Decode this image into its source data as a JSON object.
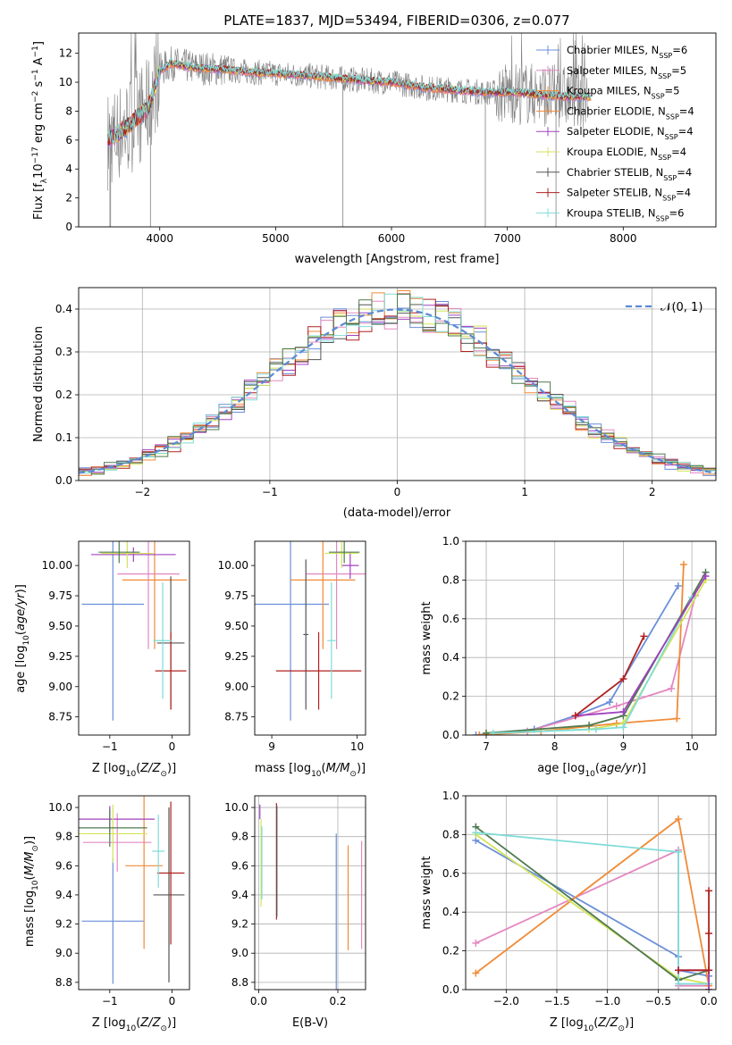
{
  "chart_data": [
    {
      "id": "spectrum",
      "type": "line",
      "title": "PLATE=1837, MJD=53494, FIBERID=0306, z=0.077",
      "xlabel": "wavelength [Angstrom, rest frame]",
      "ylabel": "Flux [f",
      "ylabel_full": "Flux [fλ10^-17 erg cm^-2 s^-1 A^-1]",
      "xlim": [
        3300,
        8800
      ],
      "ylim": [
        0,
        13.4
      ],
      "xticks": [
        "4000",
        "5000",
        "6000",
        "7000",
        "8000"
      ],
      "xtick_values": [
        4000,
        5000,
        6000,
        7000,
        8000
      ],
      "yticks": [
        "0",
        "2",
        "4",
        "6",
        "8",
        "10",
        "12"
      ],
      "ytick_values": [
        0,
        2,
        4,
        6,
        8,
        10,
        12
      ],
      "legend_position": "upper-right",
      "series": [
        {
          "name": "Chabrier MILES, N",
          "sub": "SSP",
          "suffix": "=6",
          "color": "#6a8fd8"
        },
        {
          "name": "Salpeter MILES, N",
          "sub": "SSP",
          "suffix": "=5",
          "color": "#e388c1"
        },
        {
          "name": "Kroupa MILES, N",
          "sub": "SSP",
          "suffix": "=5",
          "color": "#f08b38"
        },
        {
          "name": "Chabrier ELODIE, N",
          "sub": "SSP",
          "suffix": "=4",
          "color": "#f0883a"
        },
        {
          "name": "Salpeter ELODIE, N",
          "sub": "SSP",
          "suffix": "=4",
          "color": "#a040c0"
        },
        {
          "name": "Kroupa ELODIE, N",
          "sub": "SSP",
          "suffix": "=4",
          "color": "#d4e35a"
        },
        {
          "name": "Chabrier STELIB, N",
          "sub": "SSP",
          "suffix": "=4",
          "color": "#555555"
        },
        {
          "name": "Salpeter STELIB, N",
          "sub": "SSP",
          "suffix": "=4",
          "color": "#b02020"
        },
        {
          "name": "Kroupa STELIB, N",
          "sub": "SSP",
          "suffix": "=6",
          "color": "#7fdcd8"
        }
      ],
      "data_color": "#808080",
      "model_spectrum": {
        "x": [
          3550,
          3700,
          3900,
          4000,
          4100,
          4300,
          4500,
          4800,
          5000,
          5200,
          5500,
          5800,
          6000,
          6300,
          6500,
          6800,
          7000,
          7200,
          7500
        ],
        "y": [
          6.0,
          6.8,
          8.2,
          10.8,
          11.3,
          11.0,
          10.9,
          10.7,
          10.6,
          10.5,
          10.3,
          10.1,
          10.0,
          9.6,
          9.5,
          9.3,
          9.3,
          9.2,
          9.0
        ]
      }
    },
    {
      "id": "residuals",
      "type": "histogram",
      "xlabel": "(data-model)/error",
      "ylabel": "Normed distribution",
      "xlim": [
        -2.5,
        2.5
      ],
      "ylim": [
        0,
        0.45
      ],
      "xticks": [
        "−2",
        "−1",
        "0",
        "1",
        "2"
      ],
      "xtick_values": [
        -2,
        -1,
        0,
        1,
        2
      ],
      "yticks": [
        "0.0",
        "0.1",
        "0.2",
        "0.3",
        "0.4"
      ],
      "ytick_values": [
        0,
        0.1,
        0.2,
        0.3,
        0.4
      ],
      "grid": true,
      "legend_label": "𝒩(0, 1)",
      "legend_color": "#5b8ad6",
      "bin_width": 0.1
    },
    {
      "id": "age_vs_Z",
      "type": "errorbar",
      "xlabel": "Z [log",
      "ylabel": "age  [log",
      "xlim": [
        -1.5,
        0.28
      ],
      "ylim": [
        8.6,
        10.2
      ],
      "xticks": [
        "−1",
        "0"
      ],
      "xtick_values": [
        -1,
        0
      ],
      "yticks": [
        "8.75",
        "9.00",
        "9.25",
        "9.50",
        "9.75",
        "10.00"
      ],
      "ytick_values": [
        8.75,
        9.0,
        9.25,
        9.5,
        9.75,
        10.0
      ],
      "points": [
        {
          "x": -0.95,
          "xerr": 0.5,
          "y": 9.68,
          "yerr": 0.96,
          "color": "#6a8fd8"
        },
        {
          "x": -0.38,
          "xerr": 0.5,
          "y": 9.93,
          "yerr": 0.62,
          "color": "#e388c1"
        },
        {
          "x": -0.28,
          "xerr": 0.52,
          "y": 9.88,
          "yerr": 0.57,
          "color": "#f08b38"
        },
        {
          "x": -0.62,
          "xerr": 0.68,
          "y": 10.09,
          "yerr": 0.06,
          "color": "#a040c0"
        },
        {
          "x": -0.72,
          "xerr": 0.42,
          "y": 10.1,
          "yerr": 0.12,
          "color": "#d4e35a"
        },
        {
          "x": -0.85,
          "xerr": 0.33,
          "y": 10.11,
          "yerr": 0.09,
          "color": "#4f7a4f"
        },
        {
          "x": -0.02,
          "xerr": 0.22,
          "y": 9.36,
          "yerr": 0.55,
          "color": "#555555"
        },
        {
          "x": -0.02,
          "xerr": 0.25,
          "y": 9.13,
          "yerr": 0.32,
          "color": "#b02020"
        },
        {
          "x": -0.15,
          "xerr": 0.15,
          "y": 9.38,
          "yerr": 0.48,
          "color": "#7fdcd8"
        }
      ]
    },
    {
      "id": "age_vs_mass",
      "type": "errorbar",
      "xlabel": "mass [log",
      "ylabel": "",
      "xlim": [
        8.8,
        10.1
      ],
      "ylim": [
        8.6,
        10.2
      ],
      "xticks": [
        "9",
        "10"
      ],
      "xtick_values": [
        9,
        10
      ],
      "yticks": [
        "8.75",
        "9.00",
        "9.25",
        "9.50",
        "9.75",
        "10.00"
      ],
      "ytick_values": [
        8.75,
        9.0,
        9.25,
        9.5,
        9.75,
        10.0
      ],
      "points": [
        {
          "x": 9.22,
          "xerr": 0.45,
          "y": 9.68,
          "yerr": 0.96,
          "color": "#6a8fd8"
        },
        {
          "x": 9.76,
          "xerr": 0.36,
          "y": 9.93,
          "yerr": 0.62,
          "color": "#e388c1"
        },
        {
          "x": 9.6,
          "xerr": 0.38,
          "y": 9.88,
          "yerr": 0.57,
          "color": "#f08b38"
        },
        {
          "x": 9.92,
          "xerr": 0.1,
          "y": 10.0,
          "yerr": 0.11,
          "color": "#a040c0"
        },
        {
          "x": 9.82,
          "xerr": 0.2,
          "y": 10.1,
          "yerr": 0.12,
          "color": "#d4e35a"
        },
        {
          "x": 9.85,
          "xerr": 0.18,
          "y": 10.11,
          "yerr": 0.09,
          "color": "#4f7a4f"
        },
        {
          "x": 9.4,
          "xerr": 0.03,
          "y": 9.43,
          "yerr": 0.62,
          "color": "#555555"
        },
        {
          "x": 9.55,
          "xerr": 0.5,
          "y": 9.13,
          "yerr": 0.32,
          "color": "#b02020"
        },
        {
          "x": 9.7,
          "xerr": 0.05,
          "y": 9.38,
          "yerr": 0.48,
          "color": "#7fdcd8"
        }
      ]
    },
    {
      "id": "weight_vs_age",
      "type": "line",
      "xlabel": "age  [log",
      "ylabel": "mass weight",
      "xlim": [
        6.7,
        10.35
      ],
      "ylim": [
        0,
        1.0
      ],
      "xticks": [
        "7",
        "8",
        "9",
        "10"
      ],
      "xtick_values": [
        7,
        8,
        9,
        10
      ],
      "yticks": [
        "0.0",
        "0.2",
        "0.4",
        "0.6",
        "0.8",
        "1.0"
      ],
      "ytick_values": [
        0,
        0.2,
        0.4,
        0.6,
        0.8,
        1.0
      ],
      "grid": true,
      "series": [
        {
          "color": "#6a8fd8",
          "x": [
            6.85,
            7.7,
            8.3,
            8.8,
            9.8
          ],
          "y": [
            0.0,
            0.03,
            0.1,
            0.17,
            0.77
          ]
        },
        {
          "color": "#e388c1",
          "x": [
            6.9,
            7.6,
            8.9,
            9.7,
            10.05
          ],
          "y": [
            0.0,
            0.02,
            0.15,
            0.24,
            0.72
          ]
        },
        {
          "color": "#f08b38",
          "x": [
            6.9,
            7.8,
            8.9,
            9.78,
            9.88
          ],
          "y": [
            0.0,
            0.02,
            0.06,
            0.085,
            0.88
          ]
        },
        {
          "color": "#d4e35a",
          "x": [
            7.0,
            8.5,
            9.0,
            10.2
          ],
          "y": [
            0.01,
            0.03,
            0.06,
            0.8
          ]
        },
        {
          "color": "#4f7a4f",
          "x": [
            7.0,
            8.5,
            9.0,
            10.2
          ],
          "y": [
            0.01,
            0.05,
            0.1,
            0.84
          ]
        },
        {
          "color": "#7fdcd8",
          "x": [
            7.1,
            8.6,
            9.0,
            10.0
          ],
          "y": [
            0.01,
            0.03,
            0.04,
            0.71
          ]
        },
        {
          "color": "#a040c0",
          "x": [
            8.3,
            9.0,
            10.2
          ],
          "y": [
            0.1,
            0.12,
            0.82
          ]
        },
        {
          "color": "#b02020",
          "x": [
            8.3,
            9.0,
            9.3
          ],
          "y": [
            0.1,
            0.29,
            0.51
          ]
        }
      ]
    },
    {
      "id": "mass_vs_Z",
      "type": "errorbar",
      "xlabel": "Z [log",
      "ylabel": "mass [log",
      "xlim": [
        -1.5,
        0.28
      ],
      "ylim": [
        8.75,
        10.08
      ],
      "xticks": [
        "−1",
        "0"
      ],
      "xtick_values": [
        -1,
        0
      ],
      "yticks": [
        "8.8",
        "9.0",
        "9.2",
        "9.4",
        "9.6",
        "9.8",
        "10.0"
      ],
      "ytick_values": [
        8.8,
        9.0,
        9.2,
        9.4,
        9.6,
        9.8,
        10.0
      ],
      "points": [
        {
          "x": -0.95,
          "xerr": 0.5,
          "y": 9.22,
          "yerr": 0.43,
          "color": "#6a8fd8"
        },
        {
          "x": -0.88,
          "xerr": 0.55,
          "y": 9.76,
          "yerr": 0.2,
          "color": "#e388c1"
        },
        {
          "x": -0.45,
          "xerr": 0.3,
          "y": 9.6,
          "yerr": 0.57,
          "color": "#f08b38"
        },
        {
          "x": -1.0,
          "xerr": 0.72,
          "y": 9.92,
          "yerr": 0.09,
          "color": "#a040c0"
        },
        {
          "x": -0.95,
          "xerr": 0.55,
          "y": 9.82,
          "yerr": 0.2,
          "color": "#d4e35a"
        },
        {
          "x": -1.0,
          "xerr": 0.6,
          "y": 9.86,
          "yerr": 0.13,
          "color": "#4f7a4f"
        },
        {
          "x": -0.05,
          "xerr": 0.25,
          "y": 9.4,
          "yerr": 0.6,
          "color": "#555555"
        },
        {
          "x": -0.02,
          "xerr": 0.22,
          "y": 9.55,
          "yerr": 0.49,
          "color": "#b02020"
        },
        {
          "x": -0.22,
          "xerr": 0.1,
          "y": 9.7,
          "yerr": 0.25,
          "color": "#7fdcd8"
        }
      ]
    },
    {
      "id": "mass_vs_EBV",
      "type": "errorbar",
      "xlabel": "E(B-V)",
      "ylabel": "",
      "xlim": [
        -0.01,
        0.27
      ],
      "ylim": [
        8.75,
        10.08
      ],
      "xticks": [
        "0.0",
        "0.2"
      ],
      "xtick_values": [
        0.0,
        0.2
      ],
      "yticks": [
        "8.8",
        "9.0",
        "9.2",
        "9.4",
        "9.6",
        "9.8",
        "10.0"
      ],
      "ytick_values": [
        8.8,
        9.0,
        9.2,
        9.4,
        9.6,
        9.8,
        10.0
      ],
      "grid": true,
      "points": [
        {
          "x": 0.196,
          "xerr": 0,
          "y": 9.22,
          "yerr": 0.6,
          "color": "#6a8fd8"
        },
        {
          "x": 0.26,
          "xerr": 0,
          "y": 9.4,
          "yerr": 0.37,
          "color": "#e388c1"
        },
        {
          "x": 0.226,
          "xerr": 0,
          "y": 9.38,
          "yerr": 0.36,
          "color": "#f08b38"
        },
        {
          "x": 0.003,
          "xerr": 0,
          "y": 9.97,
          "yerr": 0.05,
          "color": "#a040c0"
        },
        {
          "x": 0.006,
          "xerr": 0,
          "y": 9.62,
          "yerr": 0.3,
          "color": "#d4e35a"
        },
        {
          "x": 0.008,
          "xerr": 0,
          "y": 9.62,
          "yerr": 0.25,
          "color": "#7fdcd8"
        },
        {
          "x": 0.045,
          "xerr": 0,
          "y": 9.63,
          "yerr": 0.4,
          "color": "#b02020"
        },
        {
          "x": 0.046,
          "xerr": 0,
          "y": 9.63,
          "yerr": 0.38,
          "color": "#555555"
        }
      ]
    },
    {
      "id": "weight_vs_Z",
      "type": "line",
      "xlabel": "Z [log",
      "ylabel": "mass weight",
      "xlim": [
        -2.4,
        0.07
      ],
      "ylim": [
        0,
        1.0
      ],
      "xticks": [
        "−2.0",
        "−1.5",
        "−1.0",
        "−0.5",
        "0.0"
      ],
      "xtick_values": [
        -2.0,
        -1.5,
        -1.0,
        -0.5,
        0.0
      ],
      "yticks": [
        "0.0",
        "0.2",
        "0.4",
        "0.6",
        "0.8",
        "1.0"
      ],
      "ytick_values": [
        0,
        0.2,
        0.4,
        0.6,
        0.8,
        1.0
      ],
      "grid": true,
      "series": [
        {
          "color": "#6a8fd8",
          "x": [
            -2.3,
            -0.3,
            -0.3,
            0.0,
            0.0
          ],
          "y": [
            0.77,
            0.17,
            0.1,
            0.07,
            0.0
          ]
        },
        {
          "color": "#e388c1",
          "x": [
            -2.3,
            -0.3,
            -0.3,
            0.0
          ],
          "y": [
            0.24,
            0.72,
            0.02,
            0.02
          ]
        },
        {
          "color": "#f08b38",
          "x": [
            -2.3,
            -0.3,
            0.0,
            0.0
          ],
          "y": [
            0.085,
            0.88,
            0.02,
            0.0
          ]
        },
        {
          "color": "#d4e35a",
          "x": [
            -2.3,
            -0.3,
            0.0
          ],
          "y": [
            0.8,
            0.06,
            0.03
          ]
        },
        {
          "color": "#4f7a4f",
          "x": [
            -2.3,
            -0.3,
            0.0
          ],
          "y": [
            0.84,
            0.05,
            0.1
          ]
        },
        {
          "color": "#7fdcd8",
          "x": [
            -2.3,
            -0.3,
            -0.3,
            0.0
          ],
          "y": [
            0.81,
            0.71,
            0.03,
            0.03
          ]
        },
        {
          "color": "#a040c0",
          "x": [
            -0.3,
            0.0,
            0.0
          ],
          "y": [
            0.1,
            0.1,
            0.0
          ]
        },
        {
          "color": "#b02020",
          "x": [
            -0.3,
            0.0,
            0.0,
            0.0
          ],
          "y": [
            0.1,
            0.1,
            0.29,
            0.51
          ]
        }
      ]
    }
  ]
}
